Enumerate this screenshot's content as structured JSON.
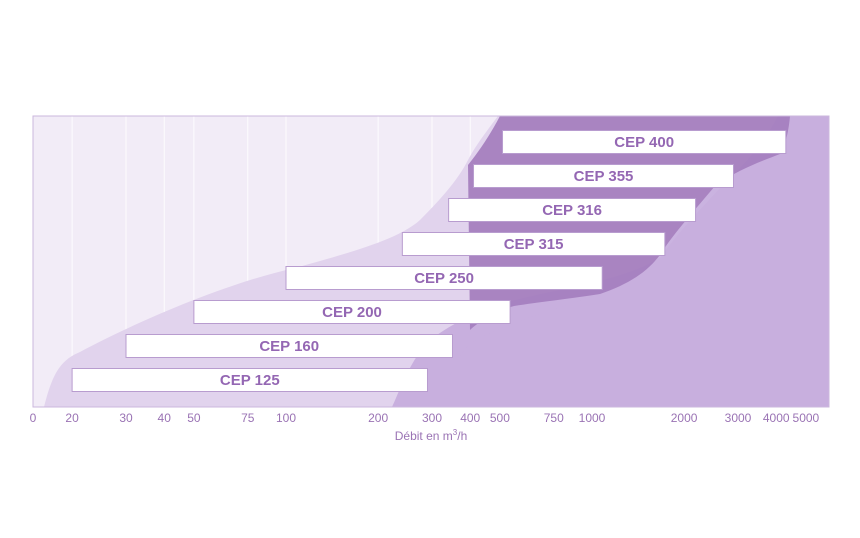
{
  "colors": {
    "plot_background": "#f2ecf7",
    "plot_border": "#cbb7dd",
    "gridline": "#ffffff",
    "band_light": "#e1d3ed",
    "band_mid": "#c8afde",
    "band_dark": "#a57fbf",
    "bar_fill": "#ffffff",
    "bar_border": "#b89ccf",
    "label_color": "#9467b3"
  },
  "chart_data": {
    "type": "bar",
    "orientation": "horizontal-range",
    "x_scale": "log",
    "xlabel": "Débit en m",
    "xlabel_superscript": "3",
    "xlabel_suffix": "/h",
    "x_ticks": [
      "0",
      "20",
      "30",
      "40",
      "50",
      "75",
      "100",
      "200",
      "300",
      "400",
      "500",
      "750",
      "1000",
      "2000",
      "3000",
      "4000",
      "5000"
    ],
    "grid": true,
    "series": [
      {
        "name": "CEP 125",
        "min": 20,
        "max": 290
      },
      {
        "name": "CEP 160",
        "min": 30,
        "max": 350
      },
      {
        "name": "CEP 200",
        "min": 50,
        "max": 540
      },
      {
        "name": "CEP 250",
        "min": 100,
        "max": 1080
      },
      {
        "name": "CEP 315",
        "min": 240,
        "max": 1730
      },
      {
        "name": "CEP 316",
        "min": 340,
        "max": 2180
      },
      {
        "name": "CEP 355",
        "min": 410,
        "max": 2900
      },
      {
        "name": "CEP 400",
        "min": 510,
        "max": 4300
      }
    ]
  }
}
